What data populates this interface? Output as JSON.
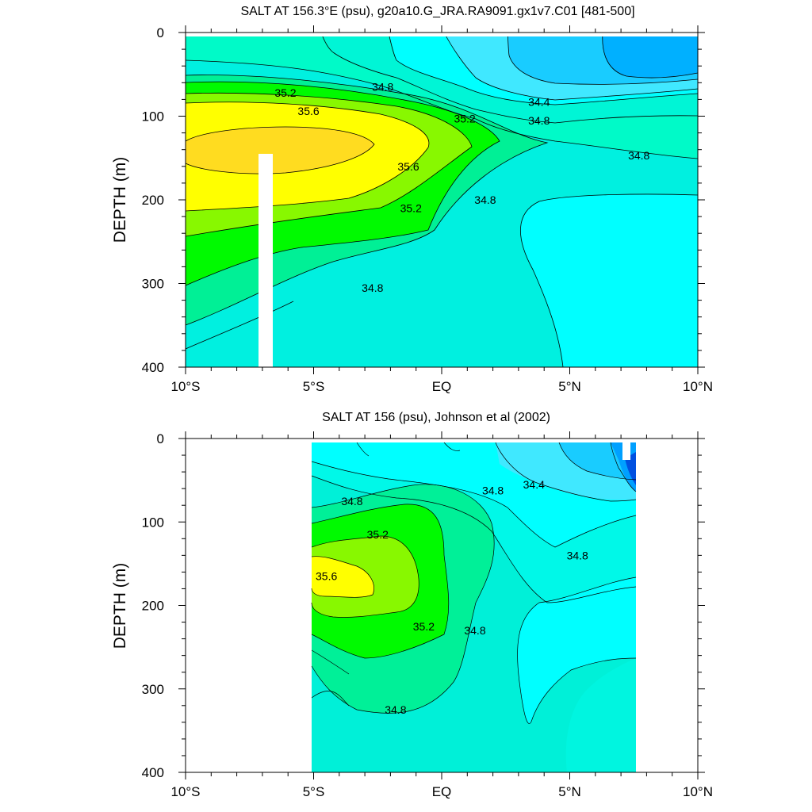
{
  "chart_data": [
    {
      "type": "contour",
      "title": "SALT AT 156.3°E (psu), g20a10.G_JRA.RA9091.gx1v7.C01 [481-500]",
      "ylabel": "DEPTH (m)",
      "xlabel": "",
      "x_ticks": [
        "10°S",
        "5°S",
        "EQ",
        "5°N",
        "10°N"
      ],
      "x_tick_values": [
        -10,
        -5,
        0,
        5,
        10
      ],
      "y_ticks": [
        "0",
        "100",
        "200",
        "300",
        "400"
      ],
      "y_tick_values": [
        0,
        100,
        200,
        300,
        400
      ],
      "xlim": [
        -10,
        10
      ],
      "ylim": [
        400,
        0
      ],
      "contour_levels": [
        34.0,
        34.2,
        34.4,
        34.6,
        34.8,
        35.0,
        35.2,
        35.4,
        35.6,
        35.8
      ],
      "contour_labels": [
        {
          "text": "34.8",
          "x": -2.3,
          "y": 65
        },
        {
          "text": "34.4",
          "x": 3.8,
          "y": 83
        },
        {
          "text": "34.8",
          "x": 3.8,
          "y": 105
        },
        {
          "text": "34.8",
          "x": 7.7,
          "y": 147
        },
        {
          "text": "35.2",
          "x": -6.1,
          "y": 72
        },
        {
          "text": "35.6",
          "x": -5.2,
          "y": 94
        },
        {
          "text": "35.2",
          "x": 0.9,
          "y": 103
        },
        {
          "text": "35.6",
          "x": -1.3,
          "y": 160
        },
        {
          "text": "35.2",
          "x": -1.2,
          "y": 210
        },
        {
          "text": "34.8",
          "x": 1.7,
          "y": 200
        },
        {
          "text": "34.8",
          "x": -2.7,
          "y": 305
        }
      ],
      "colors": {
        "fill_low": "#00b0ff",
        "fill_mid": "#00ffff",
        "fill_high": "#ffff00",
        "missing": "#ffffff"
      }
    },
    {
      "type": "contour",
      "title": "SALT AT 156 (psu), Johnson et al (2002)",
      "ylabel": "DEPTH (m)",
      "xlabel": "",
      "x_ticks": [
        "10°S",
        "5°S",
        "EQ",
        "5°N",
        "10°N"
      ],
      "x_tick_values": [
        -10,
        -5,
        0,
        5,
        10
      ],
      "y_ticks": [
        "0",
        "100",
        "200",
        "300",
        "400"
      ],
      "y_tick_values": [
        0,
        100,
        200,
        300,
        400
      ],
      "xlim": [
        -10,
        10
      ],
      "ylim": [
        400,
        0
      ],
      "data_extent_x": [
        -5,
        8
      ],
      "contour_levels": [
        34.0,
        34.2,
        34.4,
        34.6,
        34.8,
        35.0,
        35.2,
        35.4,
        35.6
      ],
      "contour_labels": [
        {
          "text": "34.8",
          "x": -3.5,
          "y": 75
        },
        {
          "text": "34.4",
          "x": 3.6,
          "y": 55
        },
        {
          "text": "34.8",
          "x": 2.0,
          "y": 62
        },
        {
          "text": "34.8",
          "x": 5.3,
          "y": 140
        },
        {
          "text": "35.2",
          "x": -2.5,
          "y": 115
        },
        {
          "text": "35.6",
          "x": -4.5,
          "y": 165
        },
        {
          "text": "35.2",
          "x": -0.7,
          "y": 225
        },
        {
          "text": "34.8",
          "x": 1.3,
          "y": 230
        },
        {
          "text": "34.8",
          "x": -1.8,
          "y": 325
        }
      ],
      "colors": {
        "fill_low": "#00b0ff",
        "fill_mid": "#00ffff",
        "fill_high": "#ffff00",
        "missing": "#ffffff"
      }
    }
  ]
}
